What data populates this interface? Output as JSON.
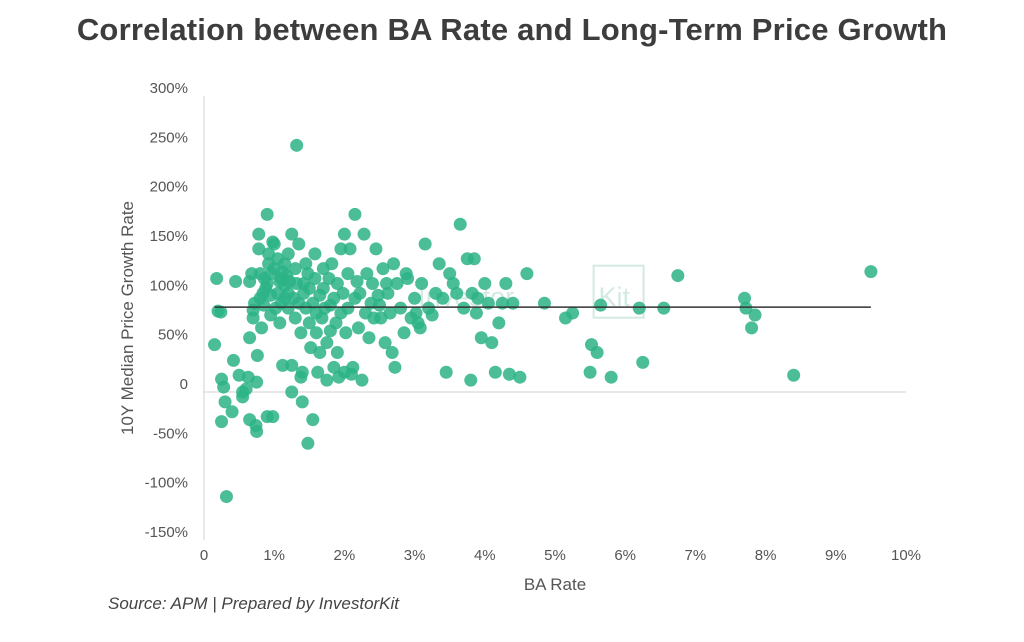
{
  "chart_data": {
    "type": "scatter",
    "title": "Correlation between BA Rate and Long-Term Price Growth",
    "xlabel": "BA Rate",
    "ylabel": "10Y Median Price Growth Rate",
    "source": "Source: APM | Prepared by InvestorKit",
    "xlim": [
      0,
      10
    ],
    "ylim": [
      -150,
      300
    ],
    "x_ticks": [
      {
        "value": 0,
        "label": "0"
      },
      {
        "value": 1,
        "label": "1%"
      },
      {
        "value": 2,
        "label": "2%"
      },
      {
        "value": 3,
        "label": "3%"
      },
      {
        "value": 4,
        "label": "4%"
      },
      {
        "value": 5,
        "label": "5%"
      },
      {
        "value": 6,
        "label": "6%"
      },
      {
        "value": 7,
        "label": "7%"
      },
      {
        "value": 8,
        "label": "8%"
      },
      {
        "value": 9,
        "label": "9%"
      },
      {
        "value": 10,
        "label": "10%"
      }
    ],
    "y_ticks": [
      {
        "value": 300,
        "label": "300%"
      },
      {
        "value": 250,
        "label": "250%"
      },
      {
        "value": 200,
        "label": "200%"
      },
      {
        "value": 150,
        "label": "150%"
      },
      {
        "value": 100,
        "label": "100%"
      },
      {
        "value": 50,
        "label": "50%"
      },
      {
        "value": 0,
        "label": "0"
      },
      {
        "value": -50,
        "label": "-50%"
      },
      {
        "value": -100,
        "label": "-100%"
      },
      {
        "value": -150,
        "label": "-150%"
      }
    ],
    "grid": false,
    "marker_color": "#2bb386",
    "trendline": {
      "x": [
        0.15,
        9.5
      ],
      "y": [
        86,
        86
      ],
      "color": "#333333"
    },
    "watermark": {
      "prefix": "Investor",
      "boxed": "Kit",
      "color": "#9ecfbf"
    },
    "series": [
      {
        "name": "Regions",
        "points": [
          [
            0.15,
            48
          ],
          [
            0.18,
            115
          ],
          [
            0.2,
            82
          ],
          [
            0.24,
            81
          ],
          [
            0.25,
            -30
          ],
          [
            0.25,
            13
          ],
          [
            0.28,
            5
          ],
          [
            0.3,
            -10
          ],
          [
            0.32,
            -106
          ],
          [
            0.4,
            -20
          ],
          [
            0.42,
            32
          ],
          [
            0.45,
            112
          ],
          [
            0.5,
            17
          ],
          [
            0.55,
            0
          ],
          [
            0.55,
            -5
          ],
          [
            0.6,
            3
          ],
          [
            0.63,
            15
          ],
          [
            0.65,
            -28
          ],
          [
            0.65,
            55
          ],
          [
            0.65,
            112
          ],
          [
            0.68,
            120
          ],
          [
            0.7,
            75
          ],
          [
            0.7,
            83
          ],
          [
            0.72,
            90
          ],
          [
            0.74,
            -34
          ],
          [
            0.75,
            -40
          ],
          [
            0.75,
            10
          ],
          [
            0.76,
            37
          ],
          [
            0.78,
            160
          ],
          [
            0.78,
            145
          ],
          [
            0.8,
            95
          ],
          [
            0.8,
            120
          ],
          [
            0.82,
            65
          ],
          [
            0.84,
            100
          ],
          [
            0.85,
            88
          ],
          [
            0.86,
            115
          ],
          [
            0.88,
            105
          ],
          [
            0.9,
            -25
          ],
          [
            0.9,
            110
          ],
          [
            0.9,
            180
          ],
          [
            0.92,
            140
          ],
          [
            0.92,
            130
          ],
          [
            0.95,
            78
          ],
          [
            0.95,
            98
          ],
          [
            0.96,
            120
          ],
          [
            0.98,
            -25
          ],
          [
            0.98,
            152
          ],
          [
            1.0,
            150
          ],
          [
            1.0,
            125
          ],
          [
            1.02,
            85
          ],
          [
            1.05,
            100
          ],
          [
            1.05,
            135
          ],
          [
            1.08,
            112
          ],
          [
            1.08,
            70
          ],
          [
            1.1,
            90
          ],
          [
            1.1,
            115
          ],
          [
            1.12,
            122
          ],
          [
            1.12,
            27
          ],
          [
            1.15,
            95
          ],
          [
            1.15,
            108
          ],
          [
            1.15,
            130
          ],
          [
            1.18,
            118
          ],
          [
            1.2,
            85
          ],
          [
            1.2,
            100
          ],
          [
            1.2,
            140
          ],
          [
            1.22,
            112
          ],
          [
            1.25,
            0
          ],
          [
            1.25,
            27
          ],
          [
            1.25,
            160
          ],
          [
            1.28,
            95
          ],
          [
            1.3,
            75
          ],
          [
            1.3,
            125
          ],
          [
            1.32,
            250
          ],
          [
            1.32,
            110
          ],
          [
            1.35,
            90
          ],
          [
            1.35,
            150
          ],
          [
            1.38,
            60
          ],
          [
            1.38,
            15
          ],
          [
            1.4,
            20
          ],
          [
            1.4,
            -10
          ],
          [
            1.42,
            110
          ],
          [
            1.42,
            100
          ],
          [
            1.45,
            85
          ],
          [
            1.45,
            130
          ],
          [
            1.48,
            -52
          ],
          [
            1.48,
            120
          ],
          [
            1.5,
            70
          ],
          [
            1.5,
            105
          ],
          [
            1.52,
            45
          ],
          [
            1.55,
            -28
          ],
          [
            1.55,
            90
          ],
          [
            1.58,
            140
          ],
          [
            1.58,
            115
          ],
          [
            1.6,
            80
          ],
          [
            1.6,
            60
          ],
          [
            1.62,
            20
          ],
          [
            1.65,
            40
          ],
          [
            1.65,
            98
          ],
          [
            1.68,
            75
          ],
          [
            1.7,
            125
          ],
          [
            1.7,
            105
          ],
          [
            1.72,
            85
          ],
          [
            1.75,
            50
          ],
          [
            1.75,
            12
          ],
          [
            1.78,
            115
          ],
          [
            1.8,
            88
          ],
          [
            1.8,
            62
          ],
          [
            1.82,
            130
          ],
          [
            1.85,
            25
          ],
          [
            1.85,
            95
          ],
          [
            1.88,
            70
          ],
          [
            1.9,
            110
          ],
          [
            1.9,
            40
          ],
          [
            1.92,
            15
          ],
          [
            1.95,
            145
          ],
          [
            1.95,
            80
          ],
          [
            1.98,
            100
          ],
          [
            2.0,
            160
          ],
          [
            2.0,
            20
          ],
          [
            2.02,
            60
          ],
          [
            2.05,
            120
          ],
          [
            2.05,
            85
          ],
          [
            2.08,
            145
          ],
          [
            2.1,
            18
          ],
          [
            2.12,
            25
          ],
          [
            2.15,
            180
          ],
          [
            2.15,
            95
          ],
          [
            2.18,
            112
          ],
          [
            2.2,
            65
          ],
          [
            2.22,
            100
          ],
          [
            2.25,
            12
          ],
          [
            2.28,
            160
          ],
          [
            2.3,
            80
          ],
          [
            2.32,
            120
          ],
          [
            2.35,
            55
          ],
          [
            2.38,
            90
          ],
          [
            2.4,
            110
          ],
          [
            2.42,
            75
          ],
          [
            2.45,
            145
          ],
          [
            2.48,
            98
          ],
          [
            2.5,
            88
          ],
          [
            2.52,
            75
          ],
          [
            2.55,
            125
          ],
          [
            2.58,
            50
          ],
          [
            2.6,
            110
          ],
          [
            2.62,
            100
          ],
          [
            2.65,
            80
          ],
          [
            2.68,
            40
          ],
          [
            2.7,
            130
          ],
          [
            2.72,
            25
          ],
          [
            2.75,
            110
          ],
          [
            2.8,
            85
          ],
          [
            2.85,
            60
          ],
          [
            2.88,
            120
          ],
          [
            2.9,
            115
          ],
          [
            2.95,
            75
          ],
          [
            3.0,
            95
          ],
          [
            3.02,
            80
          ],
          [
            3.05,
            70
          ],
          [
            3.08,
            65
          ],
          [
            3.1,
            110
          ],
          [
            3.15,
            150
          ],
          [
            3.2,
            85
          ],
          [
            3.25,
            78
          ],
          [
            3.3,
            100
          ],
          [
            3.35,
            130
          ],
          [
            3.4,
            95
          ],
          [
            3.45,
            20
          ],
          [
            3.5,
            120
          ],
          [
            3.55,
            110
          ],
          [
            3.6,
            100
          ],
          [
            3.65,
            170
          ],
          [
            3.7,
            85
          ],
          [
            3.75,
            135
          ],
          [
            3.8,
            12
          ],
          [
            3.82,
            100
          ],
          [
            3.85,
            135
          ],
          [
            3.88,
            80
          ],
          [
            3.9,
            95
          ],
          [
            3.95,
            55
          ],
          [
            4.0,
            110
          ],
          [
            4.05,
            90
          ],
          [
            4.1,
            50
          ],
          [
            4.15,
            20
          ],
          [
            4.2,
            70
          ],
          [
            4.25,
            90
          ],
          [
            4.3,
            110
          ],
          [
            4.35,
            18
          ],
          [
            4.4,
            90
          ],
          [
            4.5,
            15
          ],
          [
            4.6,
            120
          ],
          [
            4.85,
            90
          ],
          [
            5.15,
            75
          ],
          [
            5.25,
            80
          ],
          [
            5.5,
            20
          ],
          [
            5.52,
            48
          ],
          [
            5.6,
            40
          ],
          [
            5.65,
            88
          ],
          [
            5.8,
            15
          ],
          [
            6.2,
            85
          ],
          [
            6.25,
            30
          ],
          [
            6.55,
            85
          ],
          [
            6.75,
            118
          ],
          [
            7.7,
            95
          ],
          [
            7.72,
            85
          ],
          [
            7.8,
            65
          ],
          [
            7.85,
            78
          ],
          [
            8.4,
            17
          ],
          [
            9.5,
            122
          ]
        ]
      }
    ]
  }
}
